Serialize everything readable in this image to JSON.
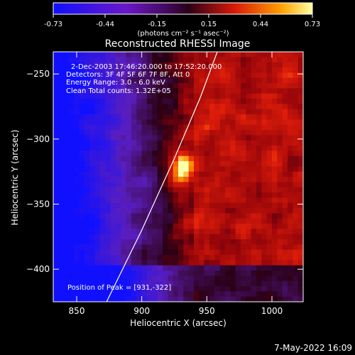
{
  "chart_data": {
    "type": "heatmap",
    "title": "Reconstructed RHESSI Image",
    "colorbar": {
      "ticks": [
        "-0.73",
        "-0.44",
        "-0.15",
        "0.15",
        "0.44",
        "0.73"
      ],
      "unit_label": "(photons cm⁻² s⁻¹ asec⁻²)",
      "range": [
        -0.73,
        0.73
      ]
    },
    "info": [
      "2-Dec-2003 17:46:20.000 to 17:52:20.000",
      "Detectors: 3F 4F 5F 6F 7F 8F, Att 0",
      "Energy Range: 3.0 - 6.0 keV",
      "Clean    Total counts: 1.32E+05"
    ],
    "peak_label": "Position of Peak = [931,-322]",
    "xlabel": "Heliocentric X (arcsec)",
    "ylabel": "Heliocentric Y (arcsec)",
    "xlim": [
      832,
      1024
    ],
    "ylim": [
      -425,
      -233
    ],
    "xticks": [
      850,
      900,
      950,
      1000
    ],
    "yticks": [
      -250,
      -300,
      -350,
      -400
    ],
    "peak": {
      "x": 931,
      "y": -322,
      "value": 0.73
    },
    "limb_curve": [
      [
        873,
        -425
      ],
      [
        900,
        -370
      ],
      [
        925,
        -315
      ],
      [
        945,
        -268
      ],
      [
        958,
        -233
      ]
    ],
    "colors": {
      "axis": "#ffffff",
      "background": "#000000"
    }
  },
  "footer": {
    "timestamp": "7-May-2022 16:09"
  }
}
